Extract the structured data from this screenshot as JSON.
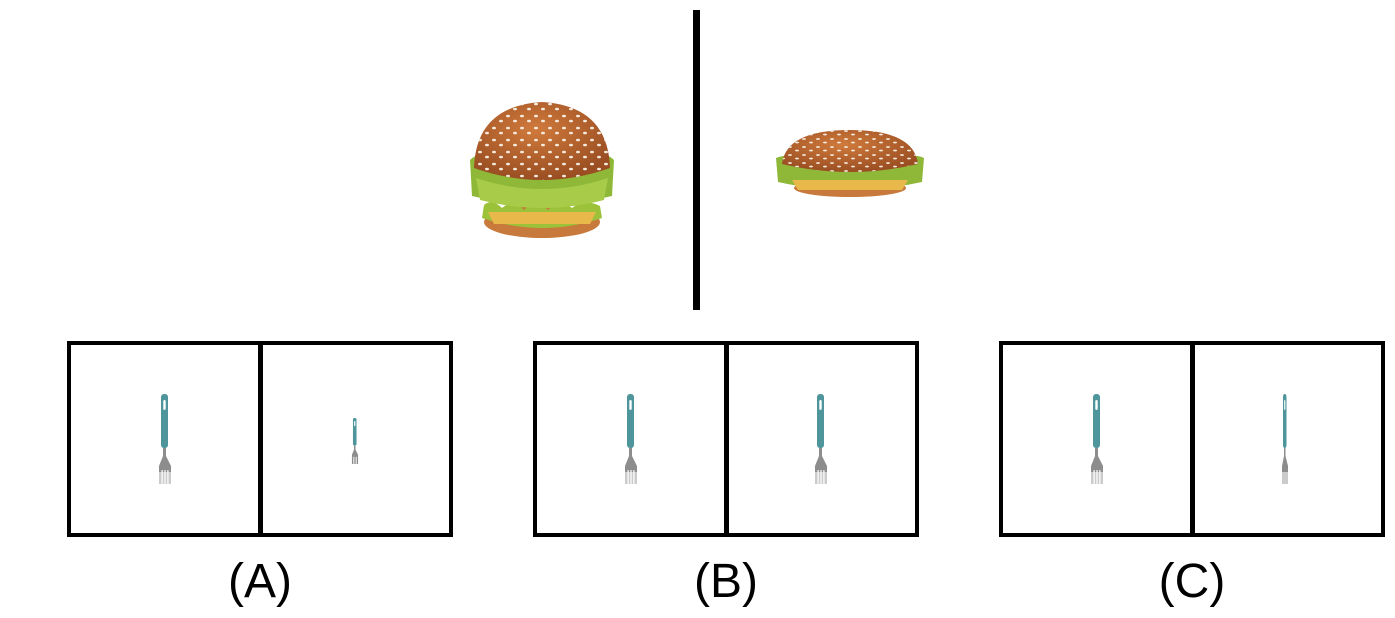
{
  "question": {
    "reference_left": "burger-tall",
    "reference_right": "burger-squashed"
  },
  "options": [
    {
      "label": "(A)",
      "left": "fork-full",
      "right": "fork-shrunk"
    },
    {
      "label": "(B)",
      "left": "fork-full",
      "right": "fork-full"
    },
    {
      "label": "(C)",
      "left": "fork-full",
      "right": "fork-narrow"
    }
  ],
  "colors": {
    "bun": "#b5602a",
    "sesame": "#f3eadc",
    "lettuce": "#9cc23a",
    "cheese": "#e8b84a",
    "fork_handle": "#4f969c",
    "fork_metal": "#8d8d8d"
  }
}
